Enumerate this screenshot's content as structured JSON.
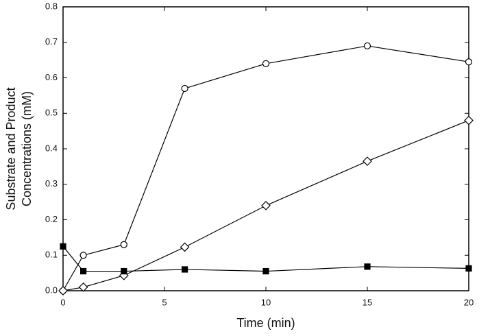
{
  "chart_data": {
    "type": "line",
    "xlabel": "Time (min)",
    "ylabel": [
      "Substrate and Product",
      "Concentrations (mM)"
    ],
    "x": [
      0,
      1,
      3,
      6,
      10,
      15,
      20
    ],
    "series": [
      {
        "color": "#000000",
        "marker": "circle",
        "values": [
          0,
          0.1,
          0.13,
          0.57,
          0.64,
          0.69,
          0.645
        ]
      },
      {
        "color": "#000000",
        "marker": "diamond",
        "values": [
          0,
          0.01,
          0.043,
          0.123,
          0.24,
          0.365,
          0.48
        ]
      },
      {
        "color": "#000000",
        "marker": "square",
        "values": [
          0.125,
          0.055,
          0.055,
          0.06,
          0.055,
          0.068,
          0.063
        ]
      }
    ],
    "xlim": [
      0,
      20
    ],
    "xticks": [
      0,
      5,
      10,
      15,
      20
    ],
    "ylim": [
      0,
      0.8
    ],
    "yticks": [
      {
        "value": 0,
        "label": "0.0"
      },
      0.1,
      0.2,
      0.3,
      0.4,
      0.5,
      0.6,
      0.7,
      0.8
    ],
    "grid": false
  }
}
